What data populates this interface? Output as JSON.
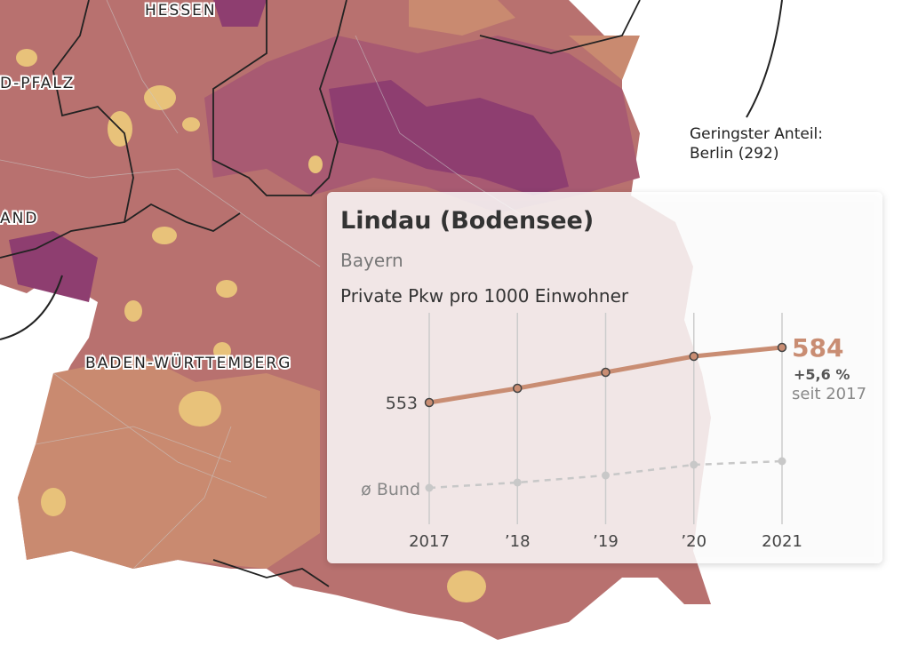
{
  "map": {
    "labels": [
      "HESSEN",
      "D-PFALZ",
      "AND",
      "BADEN-WÜRTTEMBERG"
    ],
    "annotation": [
      "Geringster Anteil:",
      "Berlin (292)"
    ]
  },
  "chart_data": {
    "type": "line",
    "title": "Lindau (Bodensee)",
    "subtitle": "Bayern",
    "y_label": "Private Pkw pro 1000 Einwohner",
    "categories": [
      "2017",
      "’18",
      "’19",
      "’20",
      "2021"
    ],
    "series": [
      {
        "color": "#c98d73",
        "values": [
          553,
          561,
          570,
          579,
          584
        ]
      },
      {
        "name": "ø Bund",
        "color": "#c8c8c8",
        "dashed": true,
        "values": [
          505,
          508,
          512,
          518,
          520
        ]
      }
    ],
    "change": "+5,6 %",
    "change_note": "seit 2017"
  }
}
